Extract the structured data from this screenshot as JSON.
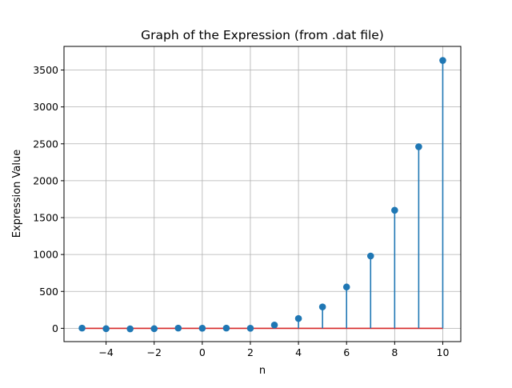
{
  "chart_data": {
    "type": "stem",
    "title": "Graph of the Expression (from .dat file)",
    "xlabel": "n",
    "ylabel": "Expression Value",
    "x": [
      -5,
      -4,
      -3,
      -2,
      -1,
      0,
      1,
      2,
      3,
      4,
      5,
      6,
      7,
      8,
      9,
      10
    ],
    "y": [
      3,
      -5,
      -7,
      -5,
      3,
      1,
      3,
      1,
      45,
      133,
      290,
      560,
      980,
      1600,
      2460,
      3630
    ],
    "xlim": [
      -5.75,
      10.75
    ],
    "ylim": [
      -180,
      3820
    ],
    "xticks": [
      -4,
      -2,
      0,
      2,
      4,
      6,
      8,
      10
    ],
    "xtick_labels": [
      "−4",
      "−2",
      "0",
      "2",
      "4",
      "6",
      "8",
      "10"
    ],
    "yticks": [
      0,
      500,
      1000,
      1500,
      2000,
      2500,
      3000,
      3500
    ],
    "ytick_labels": [
      "0",
      "500",
      "1000",
      "1500",
      "2000",
      "2500",
      "3000",
      "3500"
    ],
    "grid": true,
    "colors": {
      "stem": "#1f77b4",
      "baseline": "#d62728"
    }
  }
}
